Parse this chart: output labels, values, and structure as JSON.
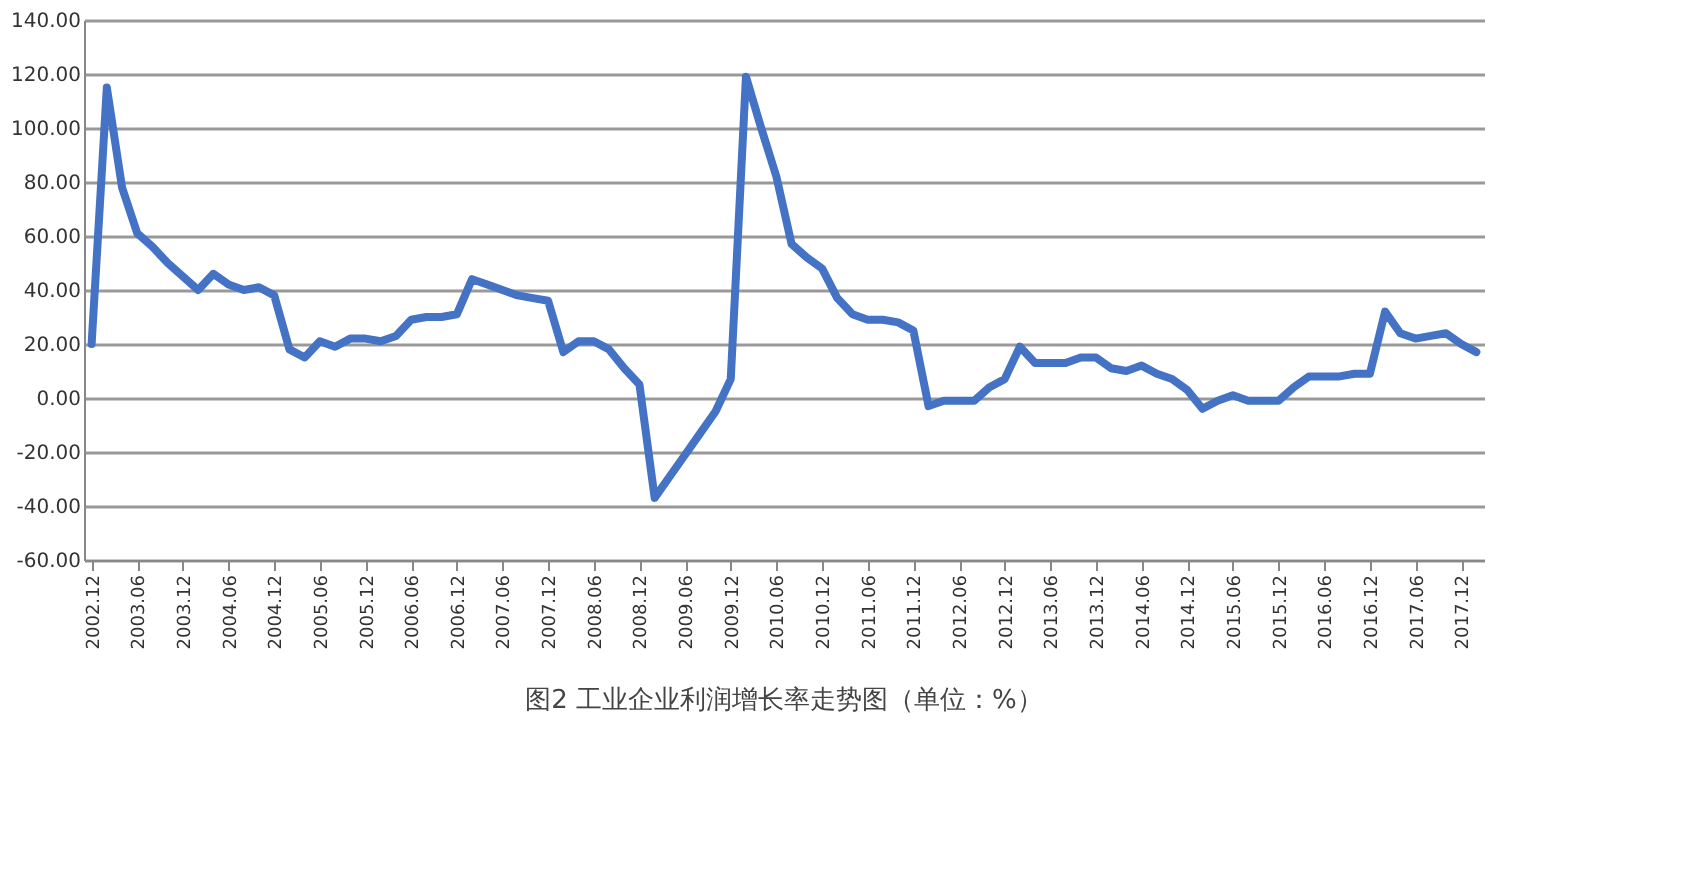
{
  "chart_data": {
    "type": "line",
    "title": "图2 工业企业利润增长率走势图（单位：%）",
    "categories": [
      "2002.12",
      null,
      null,
      "2003.06",
      null,
      null,
      "2003.12",
      null,
      null,
      "2004.06",
      null,
      null,
      "2004.12",
      null,
      null,
      "2005.06",
      null,
      null,
      "2005.12",
      null,
      null,
      "2006.06",
      null,
      null,
      "2006.12",
      null,
      null,
      "2007.06",
      null,
      null,
      "2007.12",
      null,
      null,
      "2008.06",
      null,
      null,
      "2008.12",
      null,
      null,
      "2009.06",
      null,
      null,
      "2009.12",
      null,
      null,
      "2010.06",
      null,
      null,
      "2010.12",
      null,
      null,
      "2011.06",
      null,
      null,
      "2011.12",
      null,
      null,
      "2012.06",
      null,
      null,
      "2012.12",
      null,
      null,
      "2013.06",
      null,
      null,
      "2013.12",
      null,
      null,
      "2014.06",
      null,
      null,
      "2014.12",
      null,
      null,
      "2015.06",
      null,
      null,
      "2015.12",
      null,
      null,
      "2016.06",
      null,
      null,
      "2016.12",
      null,
      null,
      "2017.06",
      null,
      null,
      "2017.12",
      null
    ],
    "series": [
      {
        "color": "#4472c4",
        "values": [
          20,
          115,
          78,
          61,
          56,
          50,
          45,
          40,
          46,
          42,
          40,
          41,
          38,
          18,
          15,
          21,
          19,
          22,
          22,
          21,
          23,
          29,
          30,
          30,
          31,
          44,
          42,
          40,
          38,
          37,
          36,
          17,
          21,
          21,
          18,
          11,
          5,
          -37,
          -29,
          -21,
          -13,
          -5,
          7,
          119,
          100,
          82,
          57,
          52,
          48,
          37,
          31,
          29,
          29,
          28,
          25,
          -3,
          -1,
          -1,
          -1,
          4,
          7,
          19,
          13,
          13,
          13,
          15,
          15,
          11,
          10,
          12,
          9,
          7,
          3,
          -4,
          -1,
          1,
          -1,
          -1,
          -1,
          4,
          8,
          8,
          8,
          9,
          9,
          32,
          24,
          22,
          23,
          24,
          20,
          17
        ]
      }
    ],
    "ylim": [
      -60,
      140
    ],
    "yticks": [
      {
        "value": -60,
        "label": "-60.00"
      },
      {
        "value": -40,
        "label": "-40.00"
      },
      {
        "value": -20,
        "label": "-20.00"
      },
      {
        "value": 0,
        "label": "0.00"
      },
      {
        "value": 20,
        "label": "20.00"
      },
      {
        "value": 40,
        "label": "40.00"
      },
      {
        "value": 60,
        "label": "60.00"
      },
      {
        "value": 80,
        "label": "80.00"
      },
      {
        "value": 100,
        "label": "100.00"
      },
      {
        "value": 120,
        "label": "120.00"
      },
      {
        "value": 140,
        "label": "140.00"
      }
    ],
    "grid": "y",
    "legend": false,
    "marker": "none",
    "line_style": "solid"
  }
}
